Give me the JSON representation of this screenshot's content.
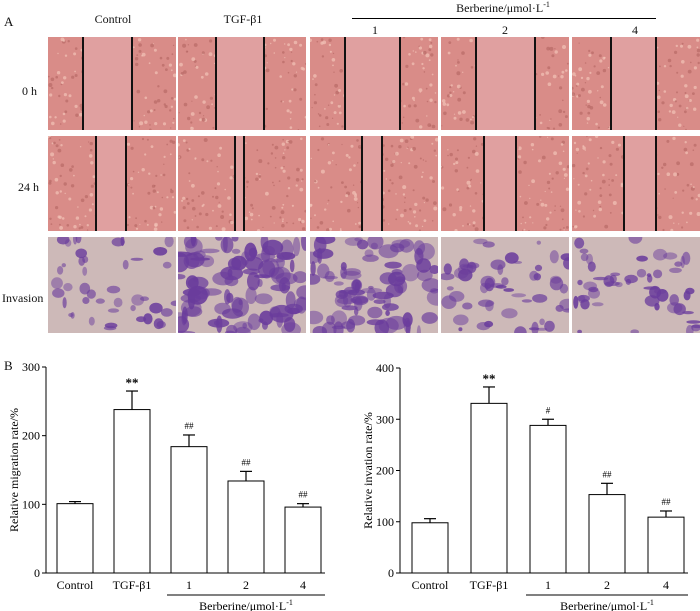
{
  "figure": {
    "panel_a_label": "A",
    "panel_b_label": "B",
    "columns": [
      "Control",
      "TGF-β1",
      "1",
      "2",
      "4"
    ],
    "berberine_header": "Berberine/μmol·L",
    "berberine_superscript": "-1",
    "rows": [
      "0 h",
      "24 h",
      "Invasion"
    ],
    "colors": {
      "scratch_bg": "#d98c88",
      "scratch_gap": "#e0a0a0",
      "scratch_line": "#111111",
      "stain_bg": "#cdb9b8",
      "stain_cell": "#6a3c9c",
      "bar_fill": "#ffffff",
      "bar_stroke": "#000000"
    },
    "scratch_state": {
      "0h": [
        "open",
        "open",
        "open",
        "open",
        "open"
      ],
      "24h": [
        "narrow",
        "very-narrow",
        "narrow",
        "medium",
        "wide"
      ]
    },
    "invasion_density": [
      0.25,
      0.9,
      0.75,
      0.4,
      0.35
    ]
  },
  "chart_data": [
    {
      "type": "bar",
      "categories": [
        "Control",
        "TGF-β1",
        "1",
        "2",
        "4"
      ],
      "values": [
        101,
        238,
        184,
        134,
        96
      ],
      "errors": [
        3,
        27,
        17,
        14,
        5
      ],
      "annotations": [
        "",
        "**",
        "##",
        "##",
        "##"
      ],
      "ylabel": "Relative migration rate/%",
      "xgroup_label": "Berberine/μmol·L",
      "xgroup_label_sup": "-1",
      "yticks": [
        0,
        100,
        200,
        300
      ],
      "ylim": [
        0,
        300
      ]
    },
    {
      "type": "bar",
      "categories": [
        "Control",
        "TGF-β1",
        "1",
        "2",
        "4"
      ],
      "values": [
        98,
        331,
        288,
        153,
        109
      ],
      "errors": [
        8,
        32,
        12,
        22,
        12
      ],
      "annotations": [
        "",
        "**",
        "#",
        "##",
        "##"
      ],
      "ylabel": "Relative invation rate/%",
      "xgroup_label": "Berberine/μmol·L",
      "xgroup_label_sup": "-1",
      "yticks": [
        0,
        100,
        200,
        300,
        400
      ],
      "ylim": [
        0,
        400
      ]
    }
  ]
}
